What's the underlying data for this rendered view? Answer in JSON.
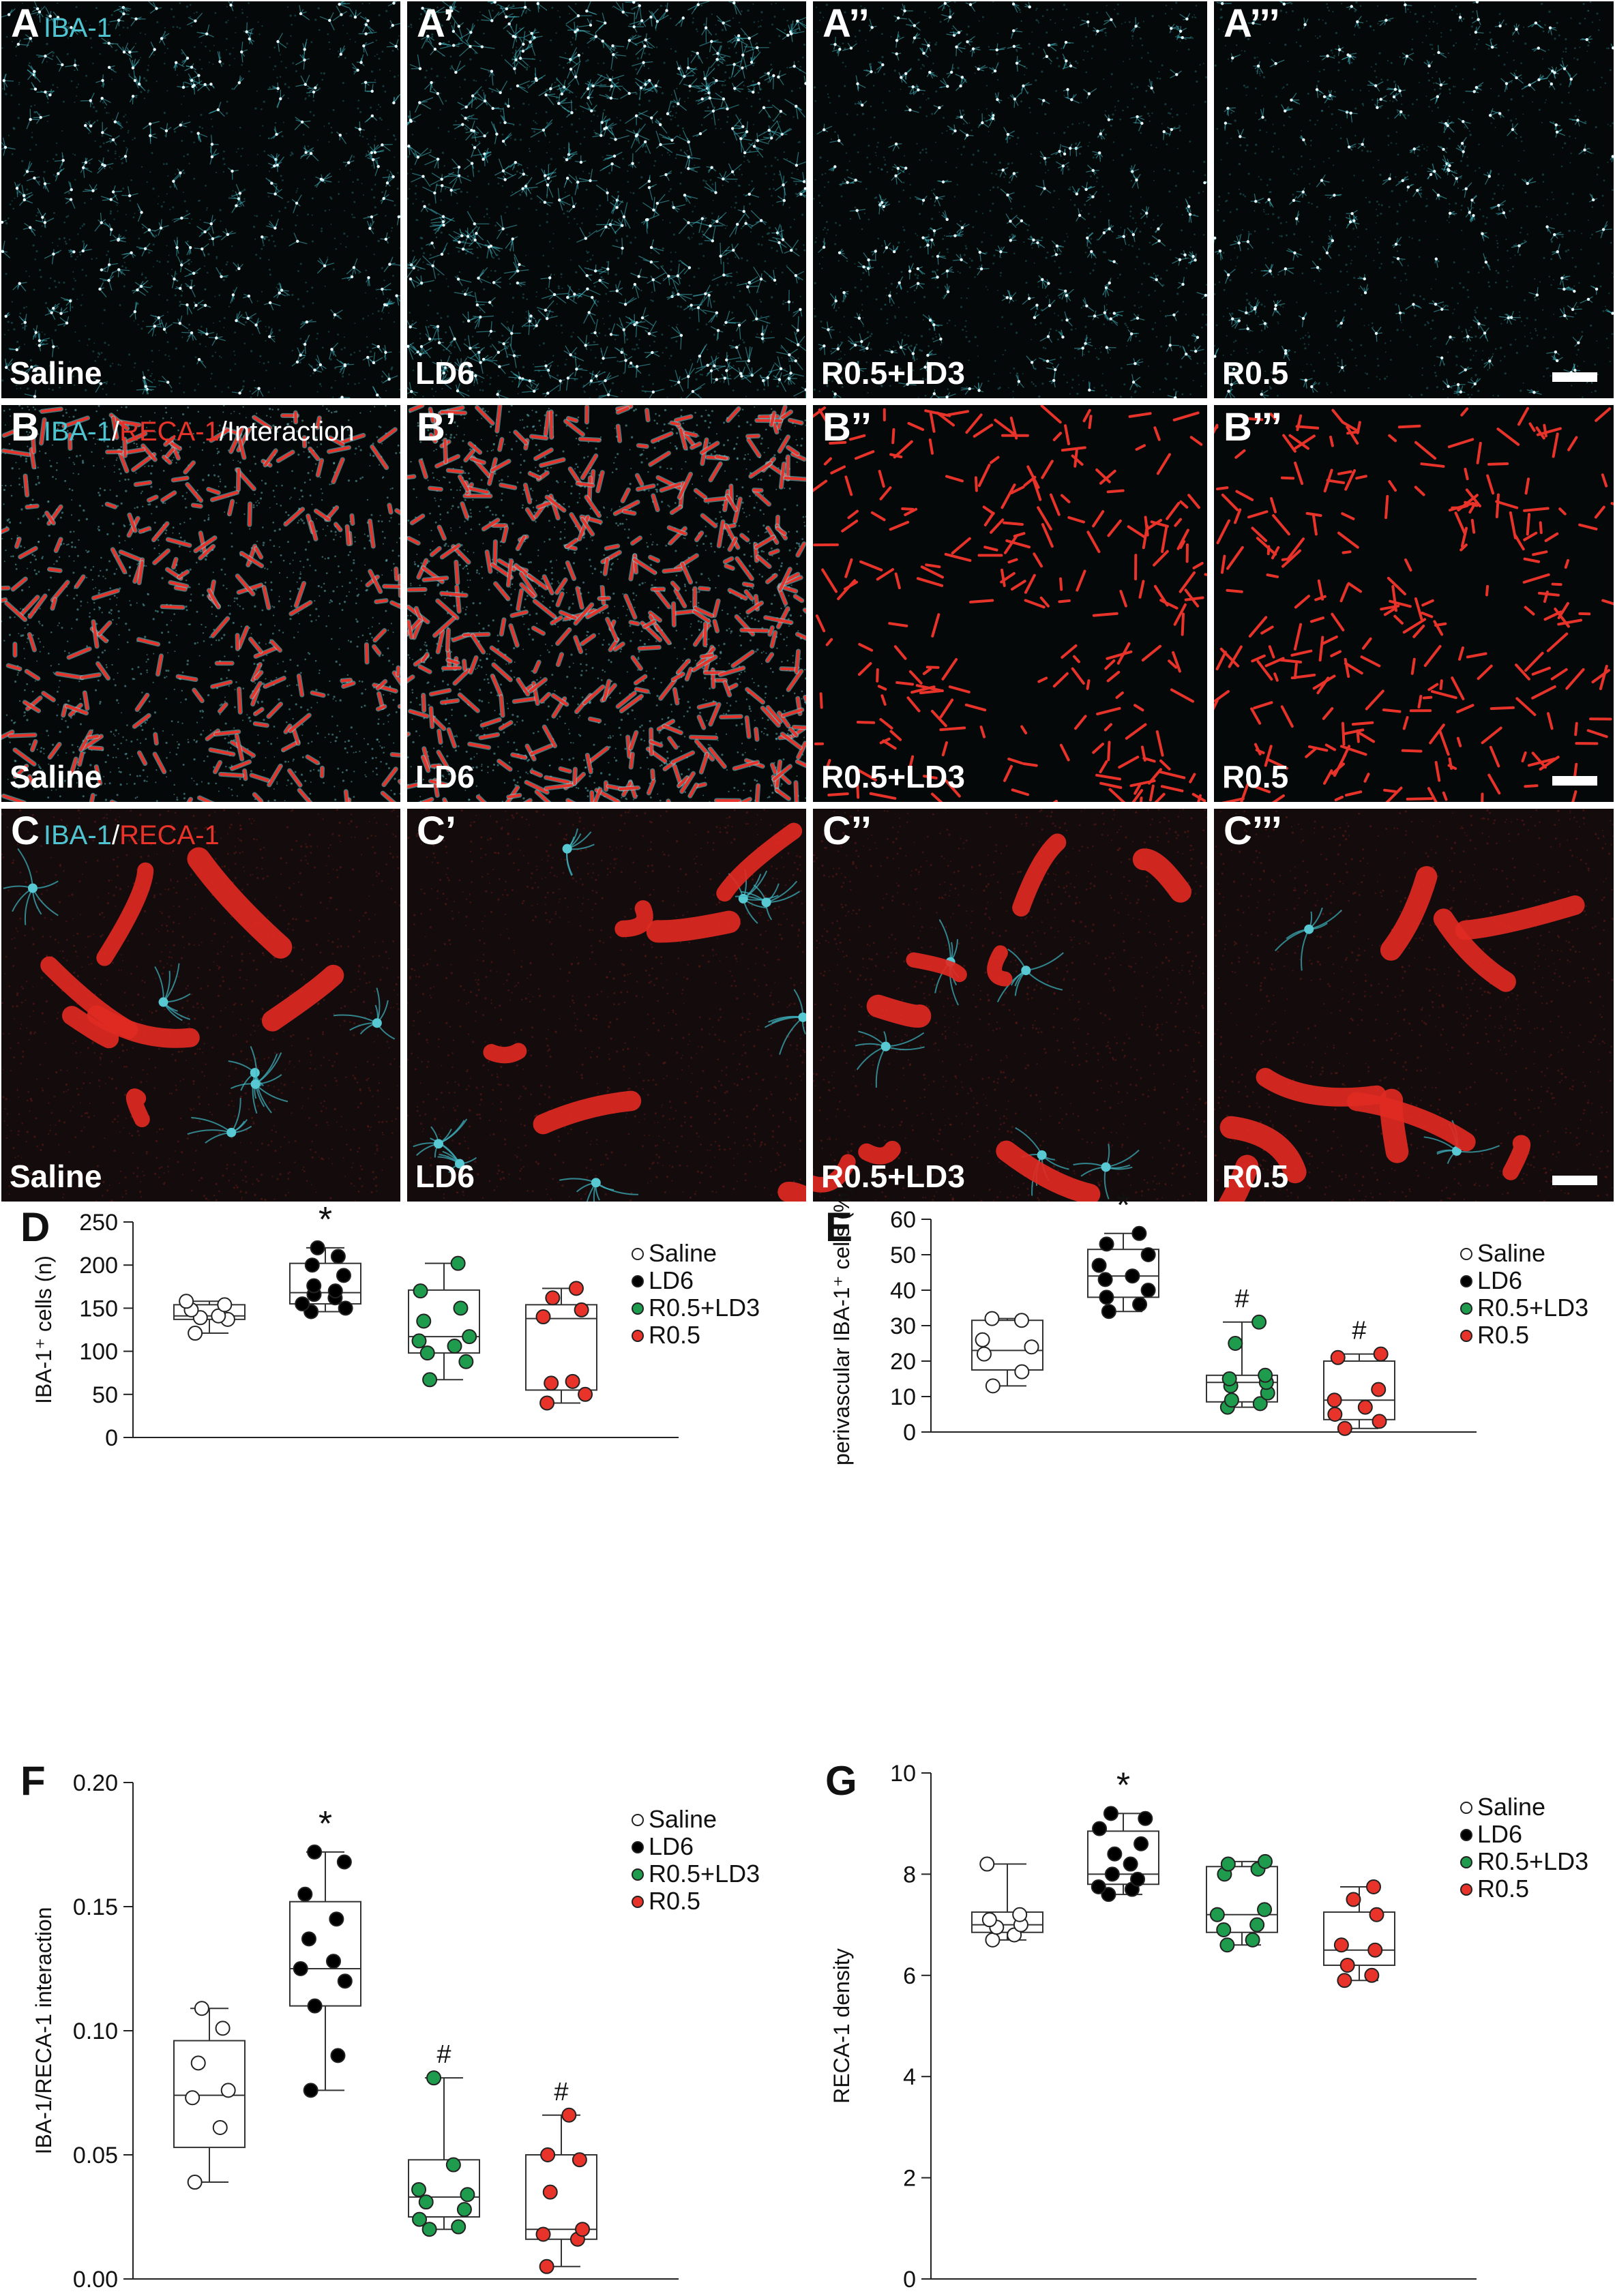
{
  "micrographs": {
    "rows": [
      {
        "id": "A",
        "stain": "iba",
        "channels": [
          {
            "text": "IBA-1",
            "color": "cyan"
          }
        ],
        "panels": [
          {
            "label": "A",
            "group": "Saline"
          },
          {
            "label": "A’",
            "group": "LD6"
          },
          {
            "label": "A’’",
            "group": "R0.5+LD3"
          },
          {
            "label": "A’’’",
            "group": "R0.5"
          }
        ]
      },
      {
        "id": "B",
        "stain": "vessel",
        "channels": [
          {
            "text": "IBA-1",
            "color": "cyan"
          },
          {
            "text": "/",
            "color": "white"
          },
          {
            "text": "RECA-1",
            "color": "red"
          },
          {
            "text": "/Interaction",
            "color": "white"
          }
        ],
        "panels": [
          {
            "label": "B",
            "group": "Saline"
          },
          {
            "label": "B’",
            "group": "LD6"
          },
          {
            "label": "B’’",
            "group": "R0.5+LD3"
          },
          {
            "label": "B’’’",
            "group": "R0.5"
          }
        ]
      },
      {
        "id": "C",
        "stain": "zoom",
        "channels": [
          {
            "text": "IBA-1",
            "color": "cyan"
          },
          {
            "text": "/",
            "color": "white"
          },
          {
            "text": "RECA-1",
            "color": "red"
          }
        ],
        "panels": [
          {
            "label": "C",
            "group": "Saline"
          },
          {
            "label": "C’",
            "group": "LD6"
          },
          {
            "label": "C’’",
            "group": "R0.5+LD3"
          },
          {
            "label": "C’’’",
            "group": "R0.5"
          }
        ]
      }
    ]
  },
  "chart_data": [
    {
      "panel": "D",
      "type": "box",
      "ylabel": "IBA-1⁺ cells (n)",
      "ylim": [
        0,
        250
      ],
      "yticks": [
        0,
        50,
        100,
        150,
        200,
        250
      ],
      "ytick_labels": [
        "0",
        "50",
        "100",
        "150",
        "200",
        "250"
      ],
      "series": [
        {
          "name": "Saline",
          "color": "#ffffff",
          "box": {
            "min": 121,
            "q1": 137,
            "median": 141,
            "q3": 154,
            "max": 158
          },
          "points": [
            121,
            137,
            139,
            141,
            148,
            154,
            158
          ],
          "mark": ""
        },
        {
          "name": "LD6",
          "color": "#000000",
          "box": {
            "min": 146,
            "q1": 155,
            "median": 168,
            "q3": 202,
            "max": 220
          },
          "points": [
            146,
            150,
            155,
            162,
            166,
            170,
            176,
            188,
            200,
            210,
            220
          ],
          "mark": "*"
        },
        {
          "name": "R0.5+LD3",
          "color": "#1e9b4d",
          "box": {
            "min": 67,
            "q1": 98,
            "median": 117,
            "q3": 171,
            "max": 202
          },
          "points": [
            67,
            88,
            98,
            106,
            112,
            117,
            135,
            150,
            170,
            202
          ],
          "mark": ""
        },
        {
          "name": "R0.5",
          "color": "#e8332a",
          "box": {
            "min": 40,
            "q1": 55,
            "median": 138,
            "q3": 154,
            "max": 173
          },
          "points": [
            40,
            50,
            63,
            65,
            140,
            148,
            162,
            173
          ],
          "mark": ""
        }
      ]
    },
    {
      "panel": "E",
      "type": "box",
      "ylabel": "perivascular IBA-1⁺ cells (%)",
      "ylim": [
        0,
        60
      ],
      "yticks": [
        0,
        10,
        20,
        30,
        40,
        50,
        60
      ],
      "ytick_labels": [
        "0",
        "10",
        "20",
        "30",
        "40",
        "50",
        "60"
      ],
      "series": [
        {
          "name": "Saline",
          "color": "#ffffff",
          "box": {
            "min": 13,
            "q1": 17.5,
            "median": 23,
            "q3": 31.5,
            "max": 32
          },
          "points": [
            13,
            17,
            22,
            24,
            26,
            31.5,
            32
          ],
          "mark": ""
        },
        {
          "name": "LD6",
          "color": "#000000",
          "box": {
            "min": 34,
            "q1": 38,
            "median": 44,
            "q3": 51.5,
            "max": 56
          },
          "points": [
            34,
            36,
            38,
            40,
            43,
            44,
            47,
            50,
            53,
            56
          ],
          "mark": "*"
        },
        {
          "name": "R0.5+LD3",
          "color": "#1e9b4d",
          "box": {
            "min": 7,
            "q1": 8.5,
            "median": 14,
            "q3": 16,
            "max": 31
          },
          "points": [
            7,
            8,
            9,
            11,
            13,
            14,
            15,
            16,
            25,
            31
          ],
          "mark": "#"
        },
        {
          "name": "R0.5",
          "color": "#e8332a",
          "box": {
            "min": 1,
            "q1": 3.5,
            "median": 9,
            "q3": 20,
            "max": 22
          },
          "points": [
            1,
            3,
            5,
            7,
            9,
            12,
            21,
            22
          ],
          "mark": "#"
        }
      ]
    },
    {
      "panel": "F",
      "type": "box",
      "ylabel": "IBA-1/RECA-1 interaction",
      "ylim": [
        0,
        0.2
      ],
      "yticks": [
        0,
        0.05,
        0.1,
        0.15,
        0.2
      ],
      "ytick_labels": [
        "0.00",
        "0.05",
        "0.10",
        "0.15",
        "0.20"
      ],
      "series": [
        {
          "name": "Saline",
          "color": "#ffffff",
          "box": {
            "min": 0.039,
            "q1": 0.053,
            "median": 0.074,
            "q3": 0.096,
            "max": 0.109
          },
          "points": [
            0.039,
            0.061,
            0.073,
            0.076,
            0.087,
            0.101,
            0.109
          ],
          "mark": ""
        },
        {
          "name": "LD6",
          "color": "#000000",
          "box": {
            "min": 0.076,
            "q1": 0.11,
            "median": 0.125,
            "q3": 0.152,
            "max": 0.172
          },
          "points": [
            0.076,
            0.09,
            0.11,
            0.12,
            0.125,
            0.128,
            0.137,
            0.145,
            0.155,
            0.168,
            0.172
          ],
          "mark": "*"
        },
        {
          "name": "R0.5+LD3",
          "color": "#1e9b4d",
          "box": {
            "min": 0.02,
            "q1": 0.025,
            "median": 0.033,
            "q3": 0.048,
            "max": 0.081
          },
          "points": [
            0.02,
            0.021,
            0.024,
            0.028,
            0.031,
            0.034,
            0.036,
            0.046,
            0.081
          ],
          "mark": "#"
        },
        {
          "name": "R0.5",
          "color": "#e8332a",
          "box": {
            "min": 0.005,
            "q1": 0.016,
            "median": 0.02,
            "q3": 0.05,
            "max": 0.066
          },
          "points": [
            0.005,
            0.016,
            0.018,
            0.02,
            0.035,
            0.048,
            0.05,
            0.066
          ],
          "mark": "#"
        }
      ]
    },
    {
      "panel": "G",
      "type": "box",
      "ylabel": "RECA-1 density",
      "ylim": [
        0,
        10
      ],
      "yticks": [
        0,
        2,
        4,
        6,
        8,
        10
      ],
      "ytick_labels": [
        "0",
        "2",
        "4",
        "6",
        "8",
        "10"
      ],
      "series": [
        {
          "name": "Saline",
          "color": "#ffffff",
          "box": {
            "min": 6.7,
            "q1": 6.85,
            "median": 7.0,
            "q3": 7.25,
            "max": 8.2
          },
          "points": [
            6.7,
            6.8,
            6.95,
            7.0,
            7.1,
            7.2,
            8.2
          ],
          "mark": ""
        },
        {
          "name": "LD6",
          "color": "#000000",
          "box": {
            "min": 7.6,
            "q1": 7.8,
            "median": 8.0,
            "q3": 8.85,
            "max": 9.2
          },
          "points": [
            7.6,
            7.7,
            7.75,
            7.9,
            8.0,
            8.2,
            8.4,
            8.6,
            8.9,
            9.1,
            9.2
          ],
          "mark": "*"
        },
        {
          "name": "R0.5+LD3",
          "color": "#1e9b4d",
          "box": {
            "min": 6.6,
            "q1": 6.85,
            "median": 7.2,
            "q3": 8.15,
            "max": 8.25
          },
          "points": [
            6.6,
            6.7,
            6.9,
            7.0,
            7.2,
            7.3,
            8.0,
            8.1,
            8.2,
            8.25
          ],
          "mark": ""
        },
        {
          "name": "R0.5",
          "color": "#e8332a",
          "box": {
            "min": 5.9,
            "q1": 6.2,
            "median": 6.5,
            "q3": 7.25,
            "max": 7.75
          },
          "points": [
            5.9,
            6.0,
            6.2,
            6.5,
            6.6,
            7.2,
            7.5,
            7.75
          ],
          "mark": ""
        }
      ]
    }
  ]
}
